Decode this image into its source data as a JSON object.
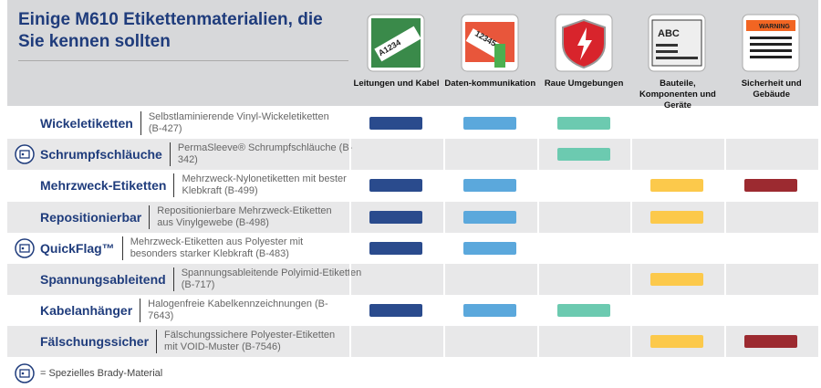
{
  "header": {
    "title": "Einige M610 Etikettenmaterialien, die Sie kennen sollten"
  },
  "columns": [
    {
      "label": "Leitungen und Kabel",
      "color": "#2a4b8d",
      "icon_text": "A1234"
    },
    {
      "label": "Daten-kommunikation",
      "color": "#5ba8dc",
      "icon_text": "12345"
    },
    {
      "label": "Raue Umgebungen",
      "color": "#6ccab0"
    },
    {
      "label": "Bauteile, Komponenten und Geräte",
      "color": "#fcc94b",
      "icon_text": "ABC"
    },
    {
      "label": "Sicherheit und Gebäude",
      "color": "#9c2a30",
      "icon_text": "WARNING"
    }
  ],
  "rows": [
    {
      "name": "Wickeletiketten",
      "description": "Selbstlaminierende Vinyl-Wickeletiketten (B-427)",
      "special": false,
      "marks": [
        true,
        true,
        true,
        false,
        false
      ]
    },
    {
      "name": "Schrumpfschläuche",
      "description": "PermaSleeve® Schrumpfschläuche (B-342)",
      "special": true,
      "marks": [
        false,
        false,
        true,
        false,
        false
      ]
    },
    {
      "name": "Mehrzweck-Etiketten",
      "description": "Mehrzweck-Nylonetiketten mit bester Klebkraft (B-499)",
      "special": false,
      "marks": [
        true,
        true,
        false,
        true,
        true
      ]
    },
    {
      "name": "Repositionierbar",
      "description": "Repositionierbare Mehrzweck-Etiketten aus Vinylgewebe (B-498)",
      "special": false,
      "marks": [
        true,
        true,
        false,
        true,
        false
      ]
    },
    {
      "name": "QuickFlag™",
      "description": "Mehrzweck-Etiketten aus Polyester mit besonders starker Klebkraft (B-483)",
      "special": true,
      "marks": [
        true,
        true,
        false,
        false,
        false
      ]
    },
    {
      "name": "Spannungsableitend",
      "description": "Spannungsableitende Polyimid-Etiketten (B-717)",
      "special": false,
      "marks": [
        false,
        false,
        false,
        true,
        false
      ]
    },
    {
      "name": "Kabelanhänger",
      "description": "Halogenfreie Kabelkennzeichnungen (B-7643)",
      "special": false,
      "marks": [
        true,
        true,
        true,
        false,
        false
      ]
    },
    {
      "name": "Fälschungssicher",
      "description": "Fälschungssichere Polyester-Etiketten mit VOID-Muster (B-7546)",
      "special": false,
      "marks": [
        false,
        false,
        false,
        true,
        true
      ]
    }
  ],
  "footer": {
    "legend": "= Spezielles Brady-Material"
  }
}
